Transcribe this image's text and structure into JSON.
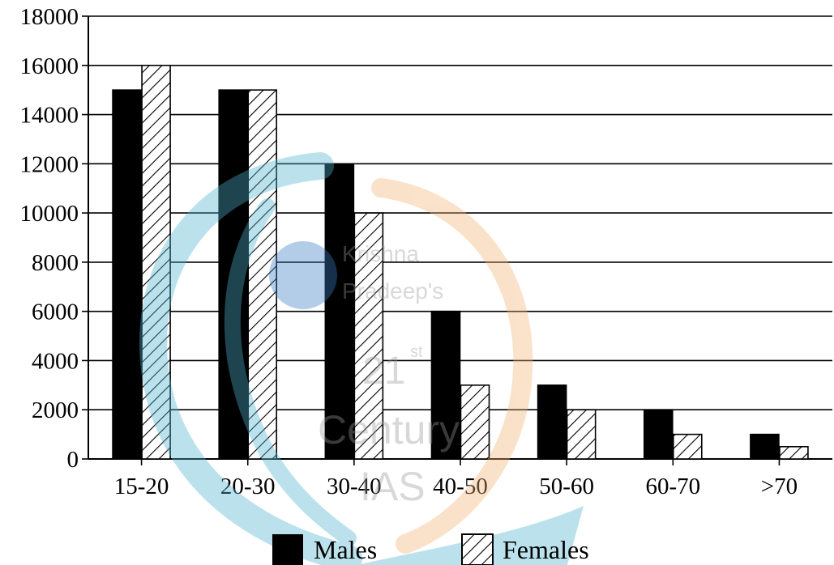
{
  "chart_data": {
    "type": "bar",
    "title": "",
    "xlabel": "",
    "ylabel": "",
    "categories": [
      "15-20",
      "20-30",
      "30-40",
      "40-50",
      "50-60",
      "60-70",
      ">70"
    ],
    "series": [
      {
        "name": "Males",
        "values": [
          15000,
          15000,
          12000,
          6000,
          3000,
          2000,
          1000
        ],
        "fill": "solid",
        "color": "#000000"
      },
      {
        "name": "Females",
        "values": [
          16000,
          15000,
          10000,
          3000,
          2000,
          1000,
          500
        ],
        "fill": "hatched",
        "color": "#ffffff"
      }
    ],
    "ylim": [
      0,
      18000
    ],
    "yticks": [
      0,
      2000,
      4000,
      6000,
      8000,
      10000,
      12000,
      14000,
      16000,
      18000
    ],
    "grid": true,
    "legend_position": "bottom-center"
  },
  "watermark": {
    "lines": [
      "Krishna",
      "Pradeep's",
      "21",
      "st",
      "Century",
      "IAS"
    ],
    "colors": {
      "teal": "#4fb4cf",
      "orange": "#f2b477",
      "blue": "#3b7ec6"
    }
  }
}
